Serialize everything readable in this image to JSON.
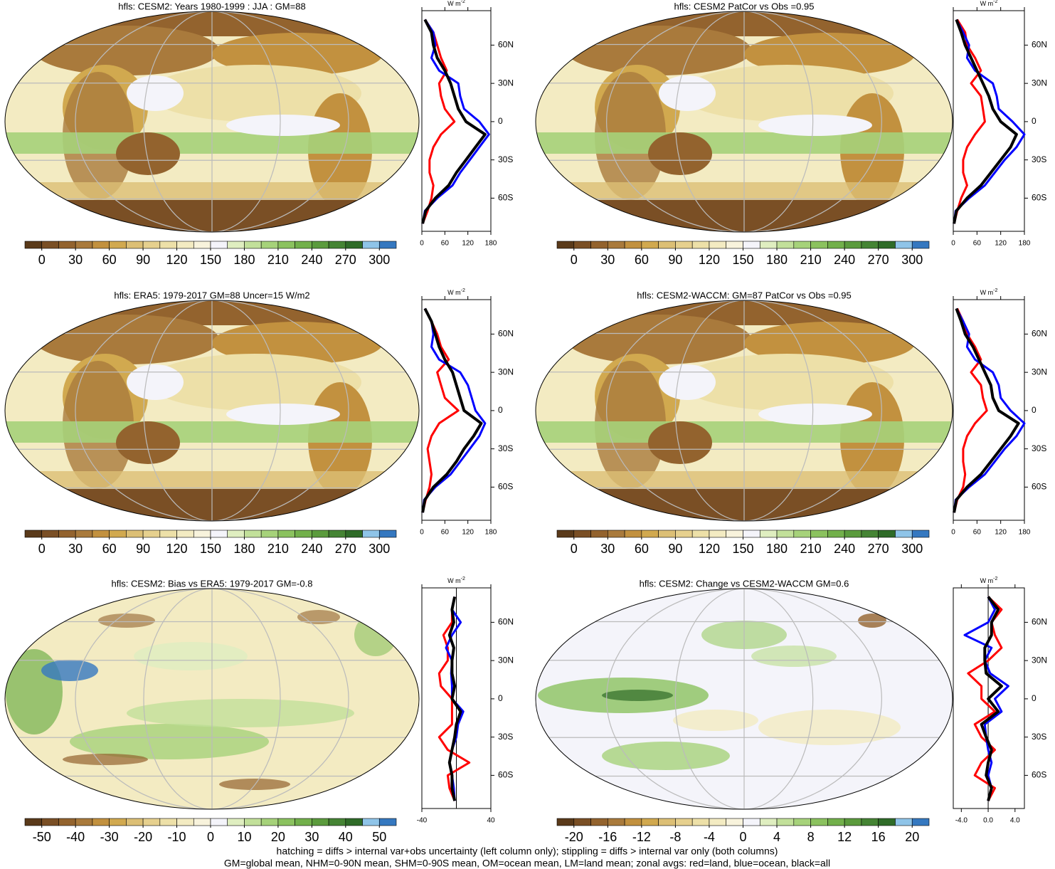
{
  "colorbar_colors": [
    "#5a3a1a",
    "#7a4f25",
    "#93632e",
    "#a97a3c",
    "#c2913f",
    "#d1a94f",
    "#dcbf75",
    "#e6d08e",
    "#ede0a8",
    "#f3ebc2",
    "#f8f3dc",
    "#f4f4fa",
    "#dfeec0",
    "#c2e09a",
    "#a6d27a",
    "#8bc25f",
    "#72b04b",
    "#5b9b3d",
    "#458434",
    "#2f6b28",
    "#8fc4e8",
    "#3578c0"
  ],
  "zonal_lat": {
    "lat": [
      -80,
      -70,
      -60,
      -50,
      -40,
      -30,
      -20,
      -10,
      0,
      10,
      20,
      30,
      40,
      50,
      60,
      70,
      80
    ],
    "ylim": [
      -86,
      87
    ],
    "yticks": [
      {
        "value": 60,
        "label": "60N"
      },
      {
        "value": 30,
        "label": "30N"
      },
      0,
      {
        "value": -30,
        "label": "30S"
      },
      {
        "value": -60,
        "label": "60S"
      }
    ],
    "x_label": {
      "base": "W m",
      "sup": "-2"
    }
  },
  "panels": [
    {
      "title": "hfls: CESM2: Years 1980-1999 : JJA : GM=88",
      "colorbar": {
        "lim": [
          -15,
          315
        ],
        "ticks": [
          0,
          30,
          60,
          90,
          120,
          150,
          180,
          210,
          240,
          270,
          300
        ]
      },
      "zonal": {
        "xlim": [
          0,
          180
        ],
        "xticks": [
          0,
          60,
          120,
          180
        ],
        "series": [
          {
            "color": "#ff0000",
            "values": [
              2,
              15,
              25,
              30,
              20,
              20,
              30,
              50,
              85,
              60,
              50,
              45,
              65,
              50,
              40,
              30,
              8
            ]
          },
          {
            "color": "#0000ff",
            "values": [
              2,
              8,
              40,
              80,
              100,
              125,
              150,
              175,
              150,
              110,
              100,
              95,
              45,
              25,
              35,
              30,
              8
            ]
          },
          {
            "color": "#000000",
            "values": [
              2,
              10,
              35,
              70,
              90,
              115,
              140,
              165,
              115,
              95,
              85,
              75,
              60,
              40,
              30,
              25,
              8
            ]
          }
        ]
      }
    },
    {
      "title": "hfls: CESM2 PatCor vs Obs =0.95",
      "colorbar": {
        "lim": [
          -15,
          315
        ],
        "ticks": [
          0,
          30,
          60,
          90,
          120,
          150,
          180,
          210,
          240,
          270,
          300
        ]
      },
      "zonal": {
        "xlim": [
          0,
          180
        ],
        "xticks": [
          0,
          60,
          120,
          180
        ],
        "series": [
          {
            "color": "#ff0000",
            "values": [
              2,
              10,
              20,
              35,
              25,
              25,
              35,
              55,
              80,
              75,
              70,
              45,
              70,
              55,
              35,
              30,
              10
            ]
          },
          {
            "color": "#0000ff",
            "values": [
              2,
              6,
              40,
              80,
              105,
              130,
              160,
              180,
              150,
              115,
              110,
              100,
              55,
              35,
              40,
              25,
              8
            ]
          },
          {
            "color": "#000000",
            "values": [
              2,
              8,
              35,
              70,
              95,
              120,
              145,
              160,
              120,
              100,
              90,
              75,
              60,
              45,
              30,
              20,
              8
            ]
          }
        ]
      }
    },
    {
      "title": "hfls: ERA5: 1979-2017 GM=88 Uncer=15 W/m2",
      "colorbar": {
        "lim": [
          -15,
          315
        ],
        "ticks": [
          0,
          30,
          60,
          90,
          120,
          150,
          180,
          210,
          240,
          270,
          300
        ]
      },
      "zonal": {
        "xlim": [
          0,
          180
        ],
        "xticks": [
          0,
          60,
          120,
          180
        ],
        "series": [
          {
            "color": "#ff0000",
            "values": [
              2,
              10,
              20,
              25,
              20,
              15,
              25,
              45,
              95,
              60,
              50,
              40,
              70,
              50,
              40,
              25,
              8
            ]
          },
          {
            "color": "#0000ff",
            "values": [
              2,
              6,
              35,
              75,
              100,
              125,
              150,
              165,
              140,
              130,
              120,
              100,
              45,
              25,
              30,
              25,
              8
            ]
          },
          {
            "color": "#000000",
            "values": [
              2,
              8,
              30,
              65,
              90,
              110,
              135,
              155,
              110,
              100,
              90,
              80,
              60,
              45,
              35,
              25,
              8
            ]
          }
        ]
      }
    },
    {
      "title": "hfls: CESM2-WACCM: GM=87 PatCor vs Obs =0.95",
      "colorbar": {
        "lim": [
          -15,
          315
        ],
        "ticks": [
          0,
          30,
          60,
          90,
          120,
          150,
          180,
          210,
          240,
          270,
          300
        ]
      },
      "zonal": {
        "xlim": [
          0,
          180
        ],
        "xticks": [
          0,
          60,
          120,
          180
        ],
        "series": [
          {
            "color": "#ff0000",
            "values": [
              2,
              10,
              25,
              30,
              25,
              25,
              35,
              55,
              85,
              75,
              70,
              45,
              70,
              55,
              35,
              25,
              10
            ]
          },
          {
            "color": "#0000ff",
            "values": [
              2,
              6,
              40,
              80,
              105,
              130,
              160,
              180,
              145,
              120,
              115,
              100,
              55,
              35,
              40,
              25,
              8
            ]
          },
          {
            "color": "#000000",
            "values": [
              2,
              8,
              35,
              70,
              95,
              120,
              145,
              165,
              115,
              100,
              95,
              80,
              65,
              50,
              30,
              20,
              8
            ]
          }
        ]
      }
    },
    {
      "title": "hfls: CESM2: Bias vs ERA5: 1979-2017 GM=-0.8",
      "colorbar": {
        "lim": [
          -55,
          55
        ],
        "ticks": [
          -50,
          -40,
          -30,
          -20,
          -10,
          0,
          10,
          20,
          30,
          40,
          50
        ]
      },
      "zonal": {
        "xlim": [
          -40,
          40
        ],
        "xticks": [
          -40,
          40
        ],
        "series": [
          {
            "color": "#ff0000",
            "values": [
              -2,
              -8,
              -10,
              15,
              -10,
              -20,
              -5,
              -5,
              -5,
              -18,
              -20,
              -10,
              -10,
              -15,
              -5,
              -5,
              -2
            ]
          },
          {
            "color": "#0000ff",
            "values": [
              -2,
              -3,
              -5,
              -8,
              -5,
              0,
              2,
              8,
              -5,
              -5,
              -6,
              -5,
              -12,
              -5,
              5,
              -5,
              -2
            ]
          },
          {
            "color": "#000000",
            "values": [
              -2,
              -5,
              -5,
              -8,
              -5,
              -2,
              0,
              5,
              -5,
              -2,
              -5,
              -5,
              -3,
              -8,
              -3,
              -5,
              -2
            ]
          }
        ]
      }
    },
    {
      "title": "hfls: CESM2: Change vs CESM2-WACCM GM=0.6",
      "colorbar": {
        "lim": [
          -22,
          22
        ],
        "ticks": [
          -20,
          -16,
          -12,
          -8,
          -4,
          0,
          4,
          8,
          12,
          16,
          20
        ]
      },
      "zonal": {
        "xlim": [
          -5.2,
          5.4
        ],
        "xticks": [
          {
            "value": -4,
            "label": "-4.0"
          },
          {
            "value": 0,
            "label": "0.0"
          },
          {
            "value": 4,
            "label": "4.0"
          }
        ],
        "series": [
          {
            "color": "#ff0000",
            "values": [
              0,
              1,
              -2,
              -1,
              1,
              -1,
              -2,
              1,
              -1,
              -1,
              -3,
              0,
              2,
              1,
              0.5,
              2,
              0
            ]
          },
          {
            "color": "#0000ff",
            "values": [
              0,
              0.5,
              0,
              0.5,
              0,
              -0.3,
              -0.5,
              2,
              1,
              3,
              0.3,
              -0.5,
              0.5,
              -3.5,
              0,
              1,
              0
            ]
          },
          {
            "color": "#000000",
            "values": [
              0,
              0.5,
              -0.3,
              0,
              0.5,
              -0.3,
              -1,
              1.5,
              0,
              2,
              -0.3,
              -0.5,
              -0.5,
              0.5,
              0.5,
              1.5,
              0
            ]
          }
        ]
      }
    }
  ],
  "footnote": [
    "hatching = diffs > internal var+obs uncertainty (left column only); stippling = diffs > internal var only (both columns)",
    "GM=global mean, NHM=0-90N mean, SHM=0-90S mean, OM=ocean mean, LM=land mean; zonal avgs: red=land, blue=ocean, black=all"
  ]
}
